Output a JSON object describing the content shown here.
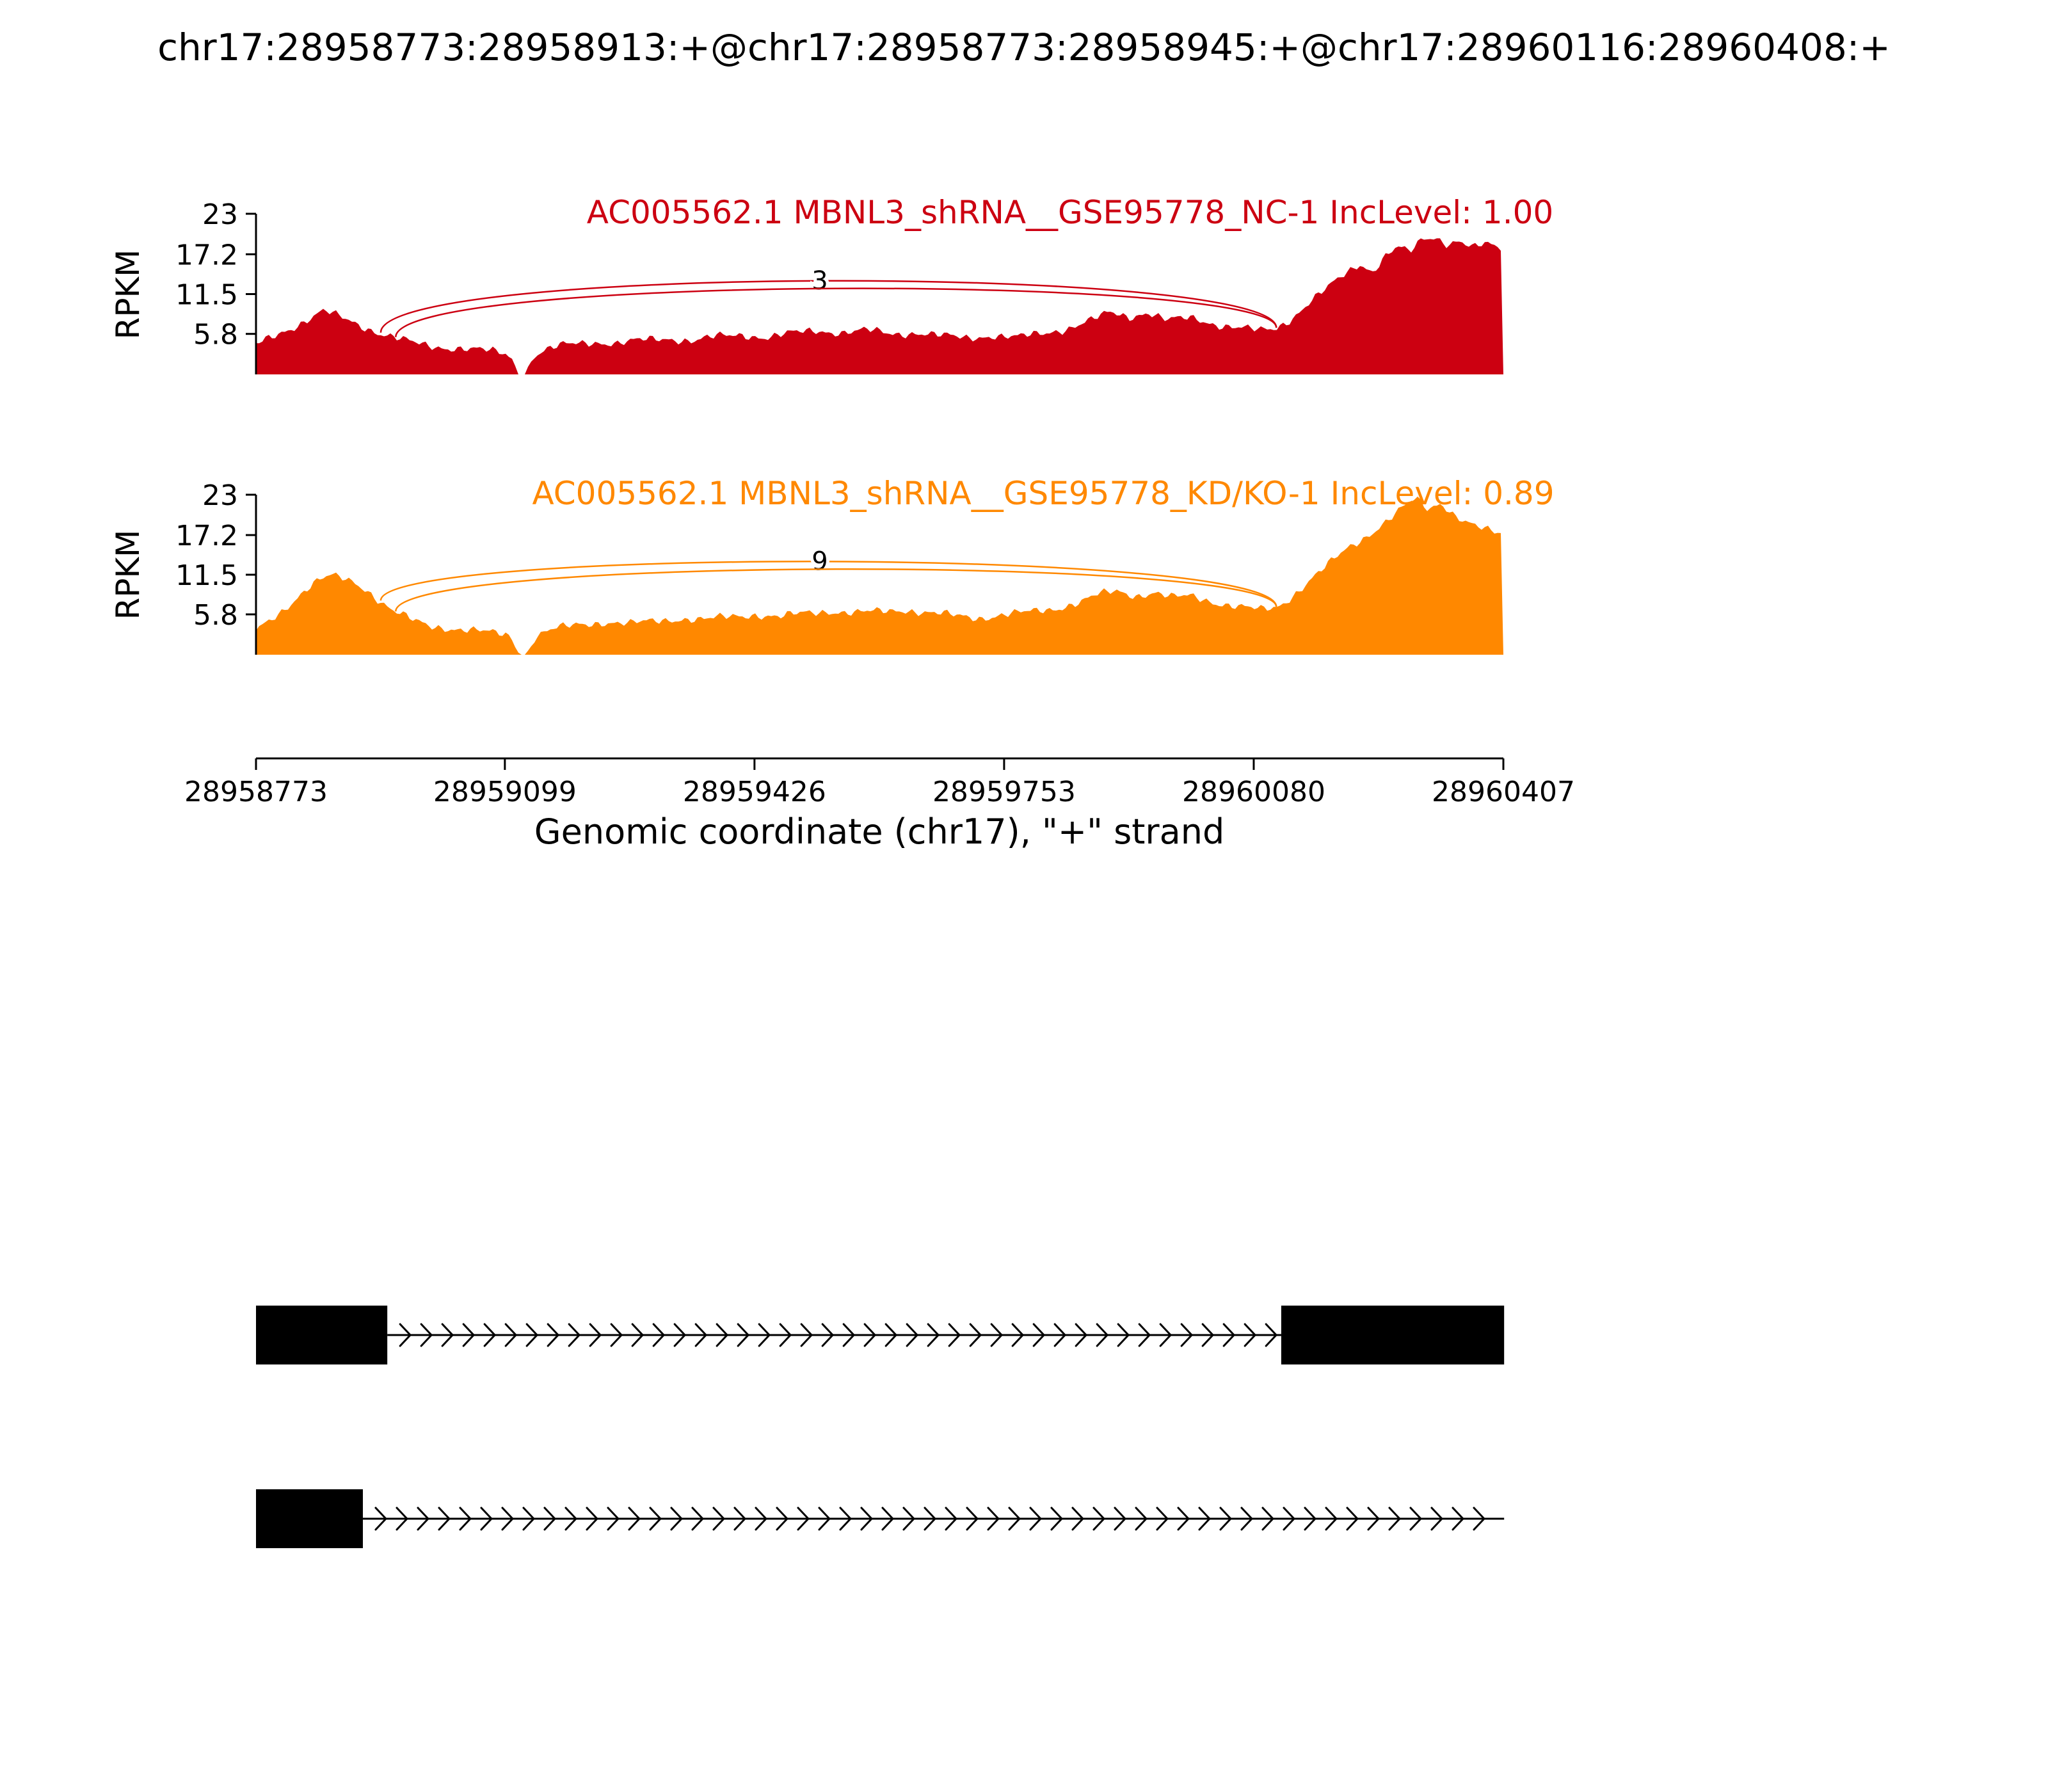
{
  "title": "chr17:28958773:28958913:+@chr17:28958773:28958945:+@chr17:28960116:28960408:+",
  "chart_data": {
    "type": "area",
    "subtype": "sashimi-plot",
    "xlabel": "Genomic coordinate (chr17), \"+\" strand",
    "ylabel": "RPKM",
    "x_range": [
      28958773,
      28960407
    ],
    "x_ticks": [
      28958773,
      28959099,
      28959426,
      28959753,
      28960080,
      28960407
    ],
    "y_ticks": [
      23,
      17.2,
      11.5,
      5.8
    ],
    "ylim": [
      0,
      23
    ],
    "grid": false,
    "tracks": [
      {
        "label": "AC005562.1 MBNL3_shRNA__GSE95778_NC-1 IncLevel: 1.00",
        "color": "#CC0011",
        "inc_level": "1.00",
        "junctions": [
          {
            "x1": 0.1,
            "x2": 0.818,
            "apex": 13.4,
            "count": "3",
            "label_frac": 0.452
          },
          {
            "x1": 0.112,
            "x2": 0.818,
            "apex": 12.3,
            "count": "",
            "label_frac": 0.47
          }
        ],
        "coverage": [
          [
            0,
            4.2
          ],
          [
            0.01,
            5.2
          ],
          [
            0.02,
            6.1
          ],
          [
            0.03,
            6.8
          ],
          [
            0.04,
            7.6
          ],
          [
            0.05,
            8.6
          ],
          [
            0.055,
            9.0
          ],
          [
            0.065,
            8.4
          ],
          [
            0.075,
            7.8
          ],
          [
            0.09,
            6.6
          ],
          [
            0.1,
            5.8
          ],
          [
            0.115,
            5.0
          ],
          [
            0.13,
            4.4
          ],
          [
            0.15,
            3.9
          ],
          [
            0.17,
            3.6
          ],
          [
            0.19,
            3.3
          ],
          [
            0.2,
            3.0
          ],
          [
            0.206,
            2.2
          ],
          [
            0.21,
            0
          ],
          [
            0.216,
            0
          ],
          [
            0.222,
            2.6
          ],
          [
            0.235,
            3.6
          ],
          [
            0.25,
            4.3
          ],
          [
            0.27,
            4.7
          ],
          [
            0.29,
            4.4
          ],
          [
            0.31,
            4.9
          ],
          [
            0.33,
            5.2
          ],
          [
            0.35,
            4.8
          ],
          [
            0.37,
            5.4
          ],
          [
            0.39,
            5.7
          ],
          [
            0.41,
            5.3
          ],
          [
            0.43,
            5.9
          ],
          [
            0.45,
            6.3
          ],
          [
            0.47,
            6.0
          ],
          [
            0.49,
            6.3
          ],
          [
            0.51,
            5.8
          ],
          [
            0.53,
            6.0
          ],
          [
            0.55,
            5.5
          ],
          [
            0.57,
            5.2
          ],
          [
            0.59,
            5.6
          ],
          [
            0.61,
            5.3
          ],
          [
            0.63,
            5.8
          ],
          [
            0.65,
            6.6
          ],
          [
            0.67,
            7.8
          ],
          [
            0.685,
            8.8
          ],
          [
            0.7,
            8.2
          ],
          [
            0.715,
            9.0
          ],
          [
            0.73,
            7.8
          ],
          [
            0.75,
            8.0
          ],
          [
            0.77,
            7.2
          ],
          [
            0.79,
            6.7
          ],
          [
            0.805,
            6.2
          ],
          [
            0.818,
            6.5
          ],
          [
            0.83,
            8.0
          ],
          [
            0.845,
            10.5
          ],
          [
            0.86,
            12.5
          ],
          [
            0.875,
            14.5
          ],
          [
            0.885,
            15.8
          ],
          [
            0.895,
            14.8
          ],
          [
            0.905,
            17.0
          ],
          [
            0.915,
            18.3
          ],
          [
            0.925,
            17.4
          ],
          [
            0.935,
            19.2
          ],
          [
            0.945,
            19.6
          ],
          [
            0.955,
            18.8
          ],
          [
            0.965,
            19.3
          ],
          [
            0.975,
            18.2
          ],
          [
            0.985,
            18.6
          ],
          [
            1.0,
            17.8
          ]
        ]
      },
      {
        "label": "AC005562.1 MBNL3_shRNA__GSE95778_KD/KO-1 IncLevel: 0.89",
        "color": "#FF8800",
        "inc_level": "0.89",
        "junctions": [
          {
            "x1": 0.1,
            "x2": 0.818,
            "apex": 13.4,
            "count": "9",
            "label_frac": 0.452
          },
          {
            "x1": 0.112,
            "x2": 0.818,
            "apex": 12.3,
            "count": "",
            "label_frac": 0.47
          }
        ],
        "coverage": [
          [
            0,
            3.4
          ],
          [
            0.01,
            4.8
          ],
          [
            0.02,
            6.2
          ],
          [
            0.03,
            7.8
          ],
          [
            0.04,
            9.4
          ],
          [
            0.05,
            10.6
          ],
          [
            0.06,
            11.3
          ],
          [
            0.07,
            11.0
          ],
          [
            0.08,
            10.4
          ],
          [
            0.09,
            9.2
          ],
          [
            0.1,
            7.6
          ],
          [
            0.11,
            6.2
          ],
          [
            0.125,
            5.0
          ],
          [
            0.14,
            4.2
          ],
          [
            0.16,
            3.7
          ],
          [
            0.18,
            3.3
          ],
          [
            0.2,
            3.0
          ],
          [
            0.206,
            2.3
          ],
          [
            0.211,
            0
          ],
          [
            0.217,
            0
          ],
          [
            0.224,
            2.7
          ],
          [
            0.24,
            3.7
          ],
          [
            0.26,
            4.4
          ],
          [
            0.28,
            4.7
          ],
          [
            0.3,
            4.4
          ],
          [
            0.32,
            4.9
          ],
          [
            0.34,
            5.2
          ],
          [
            0.36,
            5.0
          ],
          [
            0.38,
            5.5
          ],
          [
            0.4,
            5.8
          ],
          [
            0.42,
            5.4
          ],
          [
            0.44,
            6.0
          ],
          [
            0.46,
            6.3
          ],
          [
            0.48,
            6.0
          ],
          [
            0.5,
            6.2
          ],
          [
            0.52,
            6.5
          ],
          [
            0.54,
            6.0
          ],
          [
            0.56,
            5.6
          ],
          [
            0.58,
            5.3
          ],
          [
            0.6,
            5.8
          ],
          [
            0.62,
            6.1
          ],
          [
            0.64,
            6.6
          ],
          [
            0.66,
            7.6
          ],
          [
            0.675,
            8.6
          ],
          [
            0.69,
            9.1
          ],
          [
            0.705,
            8.5
          ],
          [
            0.72,
            9.0
          ],
          [
            0.735,
            8.2
          ],
          [
            0.75,
            8.4
          ],
          [
            0.77,
            7.5
          ],
          [
            0.79,
            6.9
          ],
          [
            0.805,
            6.4
          ],
          [
            0.818,
            6.7
          ],
          [
            0.83,
            8.3
          ],
          [
            0.845,
            10.8
          ],
          [
            0.86,
            13.0
          ],
          [
            0.875,
            15.2
          ],
          [
            0.89,
            17.0
          ],
          [
            0.9,
            18.4
          ],
          [
            0.91,
            19.8
          ],
          [
            0.92,
            21.2
          ],
          [
            0.93,
            22.3
          ],
          [
            0.94,
            20.8
          ],
          [
            0.95,
            21.9
          ],
          [
            0.96,
            20.3
          ],
          [
            0.97,
            19.2
          ],
          [
            0.98,
            18.3
          ],
          [
            0.99,
            17.6
          ],
          [
            1.0,
            17.2
          ]
        ]
      }
    ],
    "transcripts": [
      {
        "exons": [
          [
            28958773,
            28958945
          ],
          [
            28960116,
            28960408
          ]
        ],
        "line_end": 28960116
      },
      {
        "exons": [
          [
            28958773,
            28958913
          ]
        ],
        "line_end": 28960408
      }
    ]
  }
}
